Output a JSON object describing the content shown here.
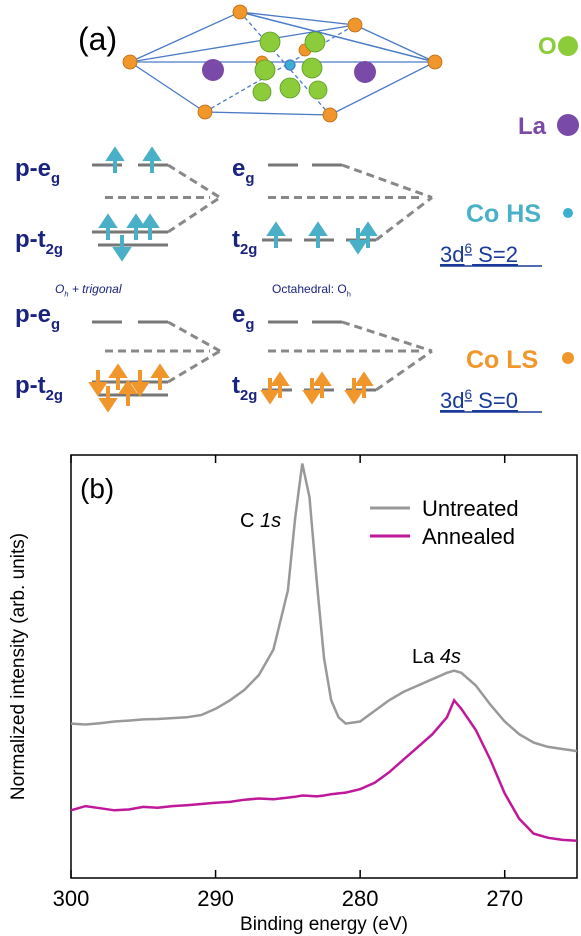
{
  "figure_a": {
    "panel_label": "(a)",
    "legend": [
      {
        "label": "O"
      },
      {
        "label": "La"
      }
    ],
    "species": [
      {
        "name": "Co HS",
        "config": {
          "base": "3d",
          "sup": "6",
          "rest": " S=2"
        }
      },
      {
        "name": "Co LS",
        "config": {
          "base": "3d",
          "sup": "6",
          "rest": " S=0"
        }
      }
    ],
    "levels": [
      {
        "base": "p-e",
        "sub": "g"
      },
      {
        "base": "p-t",
        "sub": "2g"
      },
      {
        "base": "e",
        "sub": "g"
      },
      {
        "base": "t",
        "sub": "2g"
      },
      {
        "base": "p-e",
        "sub": "g"
      },
      {
        "base": "p-t",
        "sub": "2g"
      },
      {
        "base": "e",
        "sub": "g"
      },
      {
        "base": "t",
        "sub": "2g"
      }
    ],
    "notes": [
      {
        "base": "O",
        "sub": "h",
        "rest": " + trigonal"
      },
      {
        "base": "Octahedral: O",
        "sub": "h"
      }
    ]
  },
  "chart_data": {
    "type": "line",
    "panel_label": "(b)",
    "x_label": "Binding energy (eV)",
    "y_label": "Normalized intensity (arb. units)",
    "annotations": [
      {
        "text": "C ",
        "italic": "1s"
      },
      {
        "text": "La ",
        "italic": "4s"
      }
    ],
    "x": [
      300,
      299,
      298,
      297,
      296,
      295,
      294,
      293,
      292,
      291,
      290,
      289,
      288,
      287,
      286,
      285,
      284.5,
      284,
      283.5,
      283,
      282.5,
      282,
      281.5,
      281,
      280,
      279,
      278,
      277,
      276,
      275,
      274,
      273.5,
      273,
      272,
      271,
      270,
      269,
      268,
      267,
      266,
      265
    ],
    "series": [
      {
        "name": "Untreated",
        "color": "#999999",
        "values": [
          36.5,
          36.3,
          36.6,
          37,
          37.2,
          37.5,
          37.6,
          37.8,
          38,
          38.5,
          40,
          42,
          44.5,
          48,
          54,
          68,
          85,
          98,
          90,
          70,
          52,
          42,
          38,
          36.5,
          37,
          39.5,
          42,
          44,
          45.5,
          47,
          48.5,
          49,
          48.5,
          45.5,
          41,
          37,
          34,
          32,
          31,
          30.5,
          30
        ]
      },
      {
        "name": "Annealed",
        "color": "#c0189a",
        "values": [
          16,
          17,
          16.5,
          16,
          16.2,
          16.8,
          16.6,
          17,
          17.2,
          17.5,
          17.8,
          18,
          18.5,
          18.8,
          18.6,
          19,
          19.2,
          19.5,
          19.4,
          19.3,
          19.5,
          19.8,
          20,
          20.2,
          21,
          22.5,
          25,
          28,
          31,
          34,
          38,
          42,
          40,
          35,
          28,
          20,
          14,
          10.5,
          9.5,
          9,
          8.8
        ]
      }
    ],
    "xlim": [
      300,
      265
    ],
    "xticks": [
      300,
      290,
      280,
      270
    ],
    "ylim": [
      0,
      100
    ],
    "legend": "upper right"
  }
}
